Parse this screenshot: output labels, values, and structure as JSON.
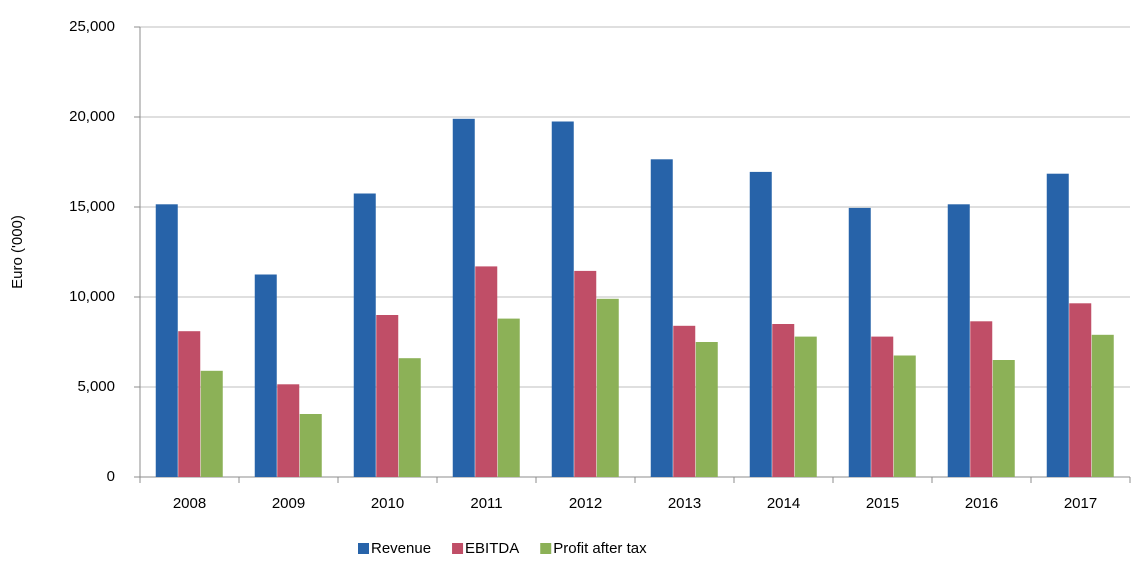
{
  "chart_data": {
    "type": "bar",
    "y_label": "Euro ('000)",
    "categories": [
      "2008",
      "2009",
      "2010",
      "2011",
      "2012",
      "2013",
      "2014",
      "2015",
      "2016",
      "2017"
    ],
    "series": [
      {
        "name": "Revenue",
        "color": "#2763a9",
        "values": [
          15150,
          11250,
          15750,
          19900,
          19750,
          17650,
          16950,
          14950,
          15150,
          16850
        ]
      },
      {
        "name": "EBITDA",
        "color": "#c04e67",
        "values": [
          8100,
          5150,
          9000,
          11700,
          11450,
          8400,
          8500,
          7800,
          8650,
          9650
        ]
      },
      {
        "name": "Profit after tax",
        "color": "#8cb157",
        "values": [
          5900,
          3500,
          6600,
          8800,
          9900,
          7500,
          7800,
          6750,
          6500,
          7900
        ]
      }
    ],
    "ylim": [
      0,
      25000
    ],
    "yticks": [
      0,
      {
        "value": 5000,
        "label": "5,000"
      },
      {
        "value": 10000,
        "label": "10,000"
      },
      {
        "value": 15000,
        "label": "15,000"
      },
      {
        "value": 20000,
        "label": "20,000"
      },
      {
        "value": 25000,
        "label": "25,000"
      }
    ],
    "grid": true
  }
}
